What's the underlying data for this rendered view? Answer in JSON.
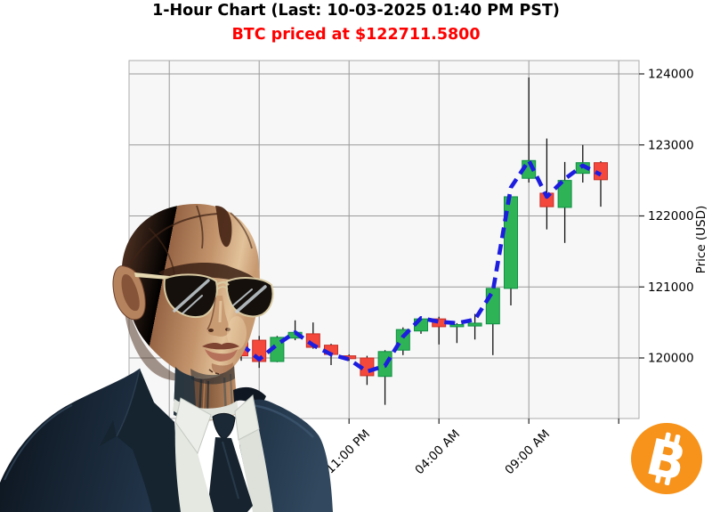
{
  "header": {
    "title": "1-Hour Chart (Last: 10-03-2025 01:40 PM PST)",
    "subtitle": "BTC priced at $122711.5800",
    "subtitle_color": "#ff0000"
  },
  "chart_data": {
    "type": "candlestick",
    "ylabel": "Price (USD)",
    "y_ticks": [
      124000,
      123000,
      122000,
      121000,
      120000
    ],
    "ylim": [
      119150,
      124190
    ],
    "grid": true,
    "x_ticks": [
      {
        "index": 6,
        "label": "11:00 PM"
      },
      {
        "index": 11,
        "label": "04:00 AM"
      },
      {
        "index": 16,
        "label": "09:00 AM"
      },
      {
        "index": 21,
        "label": ""
      }
    ],
    "candles": [
      {
        "time": "05:00 PM",
        "open": 120300,
        "high": 120340,
        "low": 119960,
        "close": 120030
      },
      {
        "time": "06:00 PM",
        "open": 120250,
        "high": 120310,
        "low": 119860,
        "close": 119950
      },
      {
        "time": "07:00 PM",
        "open": 119950,
        "high": 120310,
        "low": 119940,
        "close": 120290
      },
      {
        "time": "08:00 PM",
        "open": 120280,
        "high": 120530,
        "low": 120250,
        "close": 120360
      },
      {
        "time": "09:00 PM",
        "open": 120340,
        "high": 120500,
        "low": 120130,
        "close": 120150
      },
      {
        "time": "10:00 PM",
        "open": 120180,
        "high": 120200,
        "low": 119900,
        "close": 120050
      },
      {
        "time": "11:00 PM",
        "open": 120030,
        "high": 120050,
        "low": 119960,
        "close": 119990
      },
      {
        "time": "12:00 AM",
        "open": 120000,
        "high": 120030,
        "low": 119620,
        "close": 119750
      },
      {
        "time": "01:00 AM",
        "open": 119740,
        "high": 120110,
        "low": 119340,
        "close": 120090
      },
      {
        "time": "02:00 AM",
        "open": 120110,
        "high": 120430,
        "low": 120040,
        "close": 120400
      },
      {
        "time": "03:00 AM",
        "open": 120380,
        "high": 120580,
        "low": 120340,
        "close": 120550
      },
      {
        "time": "04:00 AM",
        "open": 120550,
        "high": 120580,
        "low": 120190,
        "close": 120440
      },
      {
        "time": "05:00 AM",
        "open": 120440,
        "high": 120490,
        "low": 120210,
        "close": 120470
      },
      {
        "time": "06:00 AM",
        "open": 120450,
        "high": 120620,
        "low": 120260,
        "close": 120490
      },
      {
        "time": "07:00 AM",
        "open": 120480,
        "high": 121000,
        "low": 120040,
        "close": 120980
      },
      {
        "time": "08:00 AM",
        "open": 120980,
        "high": 122290,
        "low": 120740,
        "close": 122270
      },
      {
        "time": "09:00 AM",
        "open": 122530,
        "high": 123950,
        "low": 122470,
        "close": 122780
      },
      {
        "time": "10:00 AM",
        "open": 122320,
        "high": 123090,
        "low": 121810,
        "close": 122130
      },
      {
        "time": "11:00 AM",
        "open": 122120,
        "high": 122760,
        "low": 121620,
        "close": 122500
      },
      {
        "time": "12:00 PM",
        "open": 122600,
        "high": 123000,
        "low": 122470,
        "close": 122750
      },
      {
        "time": "01:00 PM",
        "open": 122750,
        "high": 122770,
        "low": 122130,
        "close": 122510
      }
    ],
    "ma_dashed_line": {
      "name": "moving average",
      "values": [
        120190,
        119980,
        120190,
        120360,
        120180,
        120050,
        119980,
        119810,
        119890,
        120300,
        120560,
        120510,
        120490,
        120540,
        120940,
        122400,
        122780,
        122270,
        122520,
        122710,
        122580
      ]
    },
    "colors": {
      "up": "#2eb356",
      "up_border": "#0f8f45",
      "down": "#f4483c",
      "down_border": "#c62f26",
      "ma": "#1d1de0",
      "wick": "#111111",
      "grid": "#999999",
      "spine": "#ababab",
      "plot_bg": "#f7f7f7"
    }
  },
  "branding": {
    "bitcoin_symbol": "B",
    "bitcoin_circle_color": "#f7931a"
  },
  "overlay_figure": {
    "description": "bald android man wearing aviator sunglasses and dark suit"
  }
}
